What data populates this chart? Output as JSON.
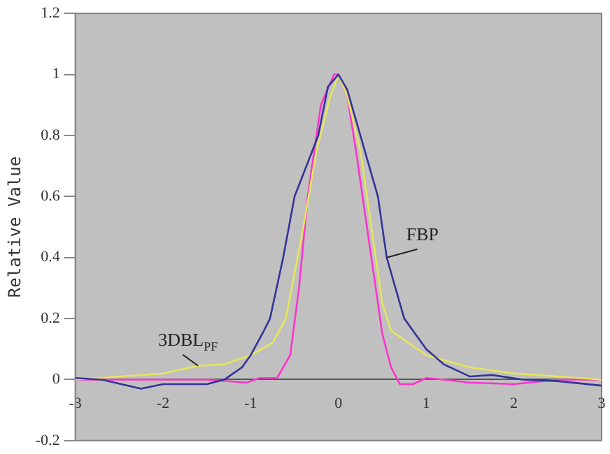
{
  "chart_data": {
    "type": "line",
    "ylabel": "Relative Value",
    "xlim": [
      -3,
      3
    ],
    "xticks": [
      -3,
      -2,
      -1,
      0,
      1,
      2,
      3
    ],
    "ylim": [
      -0.2,
      1.2
    ],
    "yticks": [
      -0.2,
      0,
      0.2,
      0.4,
      0.6,
      0.8,
      1,
      1.2
    ],
    "grid": false,
    "legend": false,
    "marker": "none",
    "line_style": "solid",
    "series": [
      {
        "name": "FBP",
        "color": "#333399",
        "x": [
          -3,
          -2.7,
          -2.25,
          -2,
          -1.5,
          -1.3,
          -1.1,
          -1,
          -0.85,
          -0.78,
          -0.63,
          -0.5,
          -0.23,
          -0.12,
          0,
          0.1,
          0.25,
          0.45,
          0.55,
          0.75,
          1,
          1.2,
          1.5,
          1.75,
          2.1,
          2.5,
          3
        ],
        "values": [
          0.005,
          0,
          -0.03,
          -0.015,
          -0.015,
          0,
          0.04,
          0.08,
          0.16,
          0.2,
          0.4,
          0.6,
          0.8,
          0.96,
          1,
          0.95,
          0.8,
          0.6,
          0.4,
          0.2,
          0.1,
          0.05,
          0.01,
          0.015,
          0,
          -0.005,
          -0.02
        ]
      },
      {
        "name": "3DBL$_{PF}$",
        "color": "#e6e65c",
        "x": [
          -3,
          -2,
          -1.6,
          -1.3,
          -1,
          -0.75,
          -0.6,
          -0.5,
          -0.4,
          -0.25,
          -0.1,
          0,
          0.1,
          0.25,
          0.4,
          0.5,
          0.6,
          0.8,
          1,
          1.5,
          2,
          2.5,
          3
        ],
        "values": [
          0,
          0.02,
          0.045,
          0.05,
          0.08,
          0.12,
          0.2,
          0.35,
          0.5,
          0.75,
          0.92,
          1,
          0.93,
          0.75,
          0.45,
          0.25,
          0.16,
          0.12,
          0.08,
          0.04,
          0.02,
          0.01,
          0
        ]
      },
      {
        "color": "#ff33cc",
        "x": [
          -3,
          -1.5,
          -1.05,
          -0.9,
          -0.7,
          -0.55,
          -0.45,
          -0.35,
          -0.2,
          -0.05,
          0,
          0.1,
          0.2,
          0.35,
          0.5,
          0.6,
          0.7,
          0.85,
          1,
          1.2,
          1.5,
          2,
          2.5,
          3
        ],
        "values": [
          0,
          0,
          -0.01,
          0.005,
          0.005,
          0.08,
          0.3,
          0.6,
          0.9,
          1,
          1,
          0.93,
          0.75,
          0.45,
          0.15,
          0.04,
          -0.015,
          -0.015,
          0.005,
          0,
          -0.01,
          -0.015,
          0,
          0
        ]
      }
    ]
  }
}
